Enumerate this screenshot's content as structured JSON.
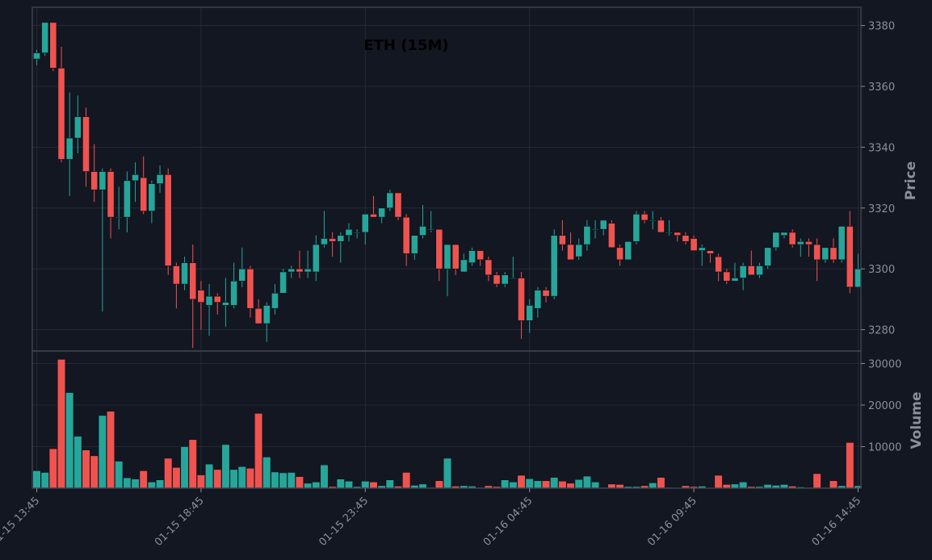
{
  "chart_data": {
    "type": "candlestick",
    "title": "ETH (15M)",
    "price_axis": {
      "label": "Price",
      "ticks": [
        3280,
        3300,
        3320,
        3340,
        3360,
        3380
      ],
      "range": [
        3273,
        3386
      ]
    },
    "volume_axis": {
      "label": "Volume",
      "ticks": [
        10000,
        20000,
        30000
      ],
      "range": [
        0,
        33000
      ]
    },
    "x_axis": {
      "tick_labels": [
        "01-15 13:45",
        "01-15 18:45",
        "01-15 23:45",
        "01-16 04:45",
        "01-16 09:45",
        "01-16 14:45"
      ],
      "tick_candle_index": [
        0,
        20,
        40,
        60,
        80,
        100
      ]
    },
    "grid": true,
    "colors": {
      "background": "#131722",
      "up": "#26a69a",
      "down": "#ef5350",
      "grid": "#2a2e39",
      "text": "#8a8f99",
      "border": "#3c414c"
    },
    "candles": [
      [
        3369,
        3372,
        3367,
        3371,
        4200
      ],
      [
        3371,
        3381,
        3370,
        3381,
        3800
      ],
      [
        3381,
        3381,
        3365,
        3366,
        9500
      ],
      [
        3366,
        3373,
        3335,
        3336,
        31000
      ],
      [
        3336,
        3358,
        3324,
        3343,
        23000
      ],
      [
        3343,
        3357,
        3338,
        3350,
        12500
      ],
      [
        3350,
        3353,
        3327,
        3332,
        9200
      ],
      [
        3332,
        3341,
        3322,
        3326,
        7800
      ],
      [
        3326,
        3333,
        3286,
        3332,
        17500
      ],
      [
        3332,
        3333,
        3310,
        3317,
        18500
      ],
      [
        3317,
        3327,
        3313,
        3317,
        6500
      ],
      [
        3317,
        3332,
        3312,
        3329,
        2500
      ],
      [
        3329,
        3335,
        3322,
        3331,
        2200
      ],
      [
        3330,
        3337,
        3318,
        3319,
        4200
      ],
      [
        3319,
        3329,
        3315,
        3328,
        1500
      ],
      [
        3328,
        3334,
        3325,
        3331,
        2000
      ],
      [
        3331,
        3333,
        3298,
        3301,
        7200
      ],
      [
        3301,
        3302,
        3287,
        3295,
        5000
      ],
      [
        3295,
        3304,
        3293,
        3302,
        10000
      ],
      [
        3302,
        3308,
        3274,
        3290,
        11700
      ],
      [
        3293,
        3296,
        3280,
        3289,
        3200
      ],
      [
        3288,
        3295,
        3278,
        3291,
        5800
      ],
      [
        3291,
        3292,
        3285,
        3289,
        4500
      ],
      [
        3288,
        3297,
        3281,
        3289,
        10500
      ],
      [
        3288,
        3302,
        3287,
        3296,
        4500
      ],
      [
        3296,
        3307,
        3294,
        3300,
        5200
      ],
      [
        3300,
        3301,
        3284,
        3287,
        4800
      ],
      [
        3287,
        3290,
        3282,
        3282,
        18000
      ],
      [
        3282,
        3289,
        3276,
        3288,
        7500
      ],
      [
        3287,
        3295,
        3285,
        3292,
        3900
      ],
      [
        3292,
        3300,
        3292,
        3299,
        3700
      ],
      [
        3299,
        3301,
        3297,
        3300,
        3800
      ],
      [
        3300,
        3306,
        3297,
        3299,
        2800
      ],
      [
        3299,
        3306,
        3297,
        3300,
        1200
      ],
      [
        3299,
        3311,
        3296,
        3308,
        1500
      ],
      [
        3308,
        3319,
        3307,
        3310,
        5600
      ],
      [
        3310,
        3312,
        3304,
        3309,
        400
      ],
      [
        3309,
        3312,
        3302,
        3311,
        2200
      ],
      [
        3311,
        3315,
        3309,
        3313,
        1700
      ],
      [
        3312,
        3313,
        3310,
        3312,
        400
      ],
      [
        3312,
        3318,
        3308,
        3318,
        1700
      ],
      [
        3318,
        3324,
        3317,
        3317,
        1500
      ],
      [
        3317,
        3320,
        3315,
        3320,
        600
      ],
      [
        3320,
        3326,
        3319,
        3325,
        2000
      ],
      [
        3325,
        3325,
        3316,
        3317,
        500
      ],
      [
        3317,
        3318,
        3301,
        3305,
        3800
      ],
      [
        3305,
        3311,
        3303,
        3311,
        700
      ],
      [
        3311,
        3321,
        3310,
        3314,
        1000
      ],
      [
        3313,
        3319,
        3312,
        3313,
        200
      ],
      [
        3313,
        3313,
        3296,
        3300,
        1800
      ],
      [
        3300,
        3308,
        3291,
        3308,
        7200
      ],
      [
        3308,
        3308,
        3298,
        3300,
        500
      ],
      [
        3299,
        3305,
        3299,
        3303,
        600
      ],
      [
        3302,
        3307,
        3301,
        3306,
        500
      ],
      [
        3306,
        3306,
        3301,
        3303,
        200
      ],
      [
        3303,
        3304,
        3296,
        3298,
        600
      ],
      [
        3298,
        3299,
        3294,
        3295,
        400
      ],
      [
        3295,
        3299,
        3294,
        3298,
        2000
      ],
      [
        3297,
        3304,
        3297,
        3297,
        1500
      ],
      [
        3297,
        3299,
        3277,
        3283,
        3100
      ],
      [
        3283,
        3290,
        3279,
        3288,
        2300
      ],
      [
        3287,
        3294,
        3284,
        3293,
        1800
      ],
      [
        3293,
        3294,
        3289,
        3291,
        1800
      ],
      [
        3291,
        3313,
        3290,
        3311,
        2600
      ],
      [
        3311,
        3316,
        3306,
        3308,
        1700
      ],
      [
        3308,
        3312,
        3303,
        3303,
        1200
      ],
      [
        3304,
        3310,
        3303,
        3308,
        2100
      ],
      [
        3308,
        3316,
        3306,
        3314,
        2900
      ],
      [
        3313,
        3316,
        3310,
        3313,
        1500
      ],
      [
        3313,
        3315,
        3311,
        3316,
        200
      ],
      [
        3315,
        3316,
        3307,
        3307,
        1000
      ],
      [
        3307,
        3308,
        3301,
        3303,
        900
      ],
      [
        3303,
        3309,
        3303,
        3309,
        400
      ],
      [
        3309,
        3319,
        3308,
        3318,
        400
      ],
      [
        3318,
        3319,
        3315,
        3316,
        600
      ],
      [
        3316,
        3319,
        3313,
        3316,
        1300
      ],
      [
        3316,
        3317,
        3312,
        3312,
        2600
      ],
      [
        3312,
        3316,
        3311,
        3312,
        200
      ],
      [
        3312,
        3312,
        3309,
        3311,
        100
      ],
      [
        3311,
        3312,
        3308,
        3309,
        600
      ],
      [
        3310,
        3311,
        3306,
        3306,
        400
      ],
      [
        3306,
        3308,
        3301,
        3307,
        500
      ],
      [
        3306,
        3306,
        3302,
        3305,
        100
      ],
      [
        3304,
        3305,
        3296,
        3299,
        3100
      ],
      [
        3299,
        3300,
        3295,
        3296,
        900
      ],
      [
        3296,
        3302,
        3297,
        3297,
        1000
      ],
      [
        3297,
        3302,
        3293,
        3301,
        1500
      ],
      [
        3301,
        3306,
        3298,
        3298,
        400
      ],
      [
        3298,
        3302,
        3297,
        3301,
        400
      ],
      [
        3301,
        3307,
        3300,
        3307,
        900
      ],
      [
        3307,
        3312,
        3306,
        3312,
        700
      ],
      [
        3311,
        3312,
        3310,
        3312,
        900
      ],
      [
        3312,
        3313,
        3307,
        3308,
        500
      ],
      [
        3308,
        3310,
        3304,
        3309,
        300
      ],
      [
        3309,
        3310,
        3304,
        3308,
        200
      ],
      [
        3308,
        3310,
        3296,
        3303,
        3500
      ],
      [
        3303,
        3307,
        3302,
        3307,
        200
      ],
      [
        3307,
        3310,
        3302,
        3303,
        1800
      ],
      [
        3303,
        3314,
        3302,
        3314,
        600
      ],
      [
        3314,
        3319,
        3292,
        3294,
        11000
      ],
      [
        3294,
        3305,
        3294,
        3300,
        600
      ]
    ]
  }
}
